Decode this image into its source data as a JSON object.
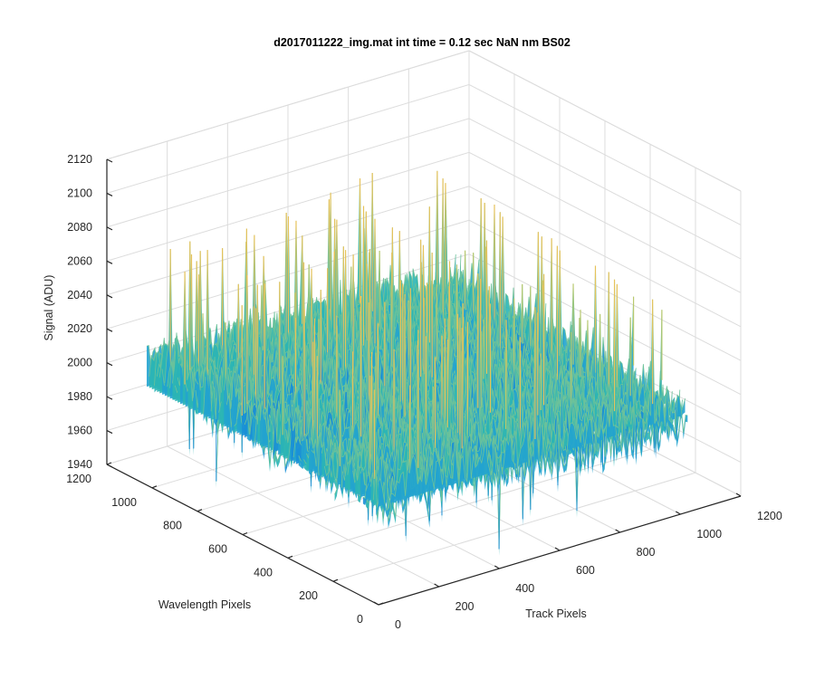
{
  "figure": {
    "title": "d2017011222_img.mat int time = 0.12 sec  NaN nm BS02"
  },
  "chart_data": {
    "type": "surface",
    "title": "d2017011222_img.mat int time = 0.12 sec  NaN nm BS02",
    "xlabel": "Track Pixels",
    "ylabel": "Wavelength Pixels",
    "zlabel": "Signal (ADU)",
    "xlim": [
      0,
      1200
    ],
    "ylim": [
      0,
      1200
    ],
    "zlim": [
      1940,
      2120
    ],
    "x_ticks": [
      "0",
      "200",
      "400",
      "600",
      "800",
      "1000",
      "1200"
    ],
    "y_ticks": [
      "0",
      "200",
      "400",
      "600",
      "800",
      "1000",
      "1200"
    ],
    "z_ticks": [
      "1940",
      "1960",
      "1980",
      "2000",
      "2020",
      "2040",
      "2060",
      "2080",
      "2100",
      "2120"
    ],
    "surface_extent": {
      "x": [
        0,
        1024
      ],
      "y": [
        0,
        1024
      ]
    },
    "baseline_signal": 2010,
    "peak_signal": 2115,
    "min_signal": 1948,
    "grid": true,
    "colormap": [
      "#1a8fd6",
      "#22a3cf",
      "#2bb5b5",
      "#6cc29a",
      "#b8c86e",
      "#e6c25a"
    ]
  }
}
